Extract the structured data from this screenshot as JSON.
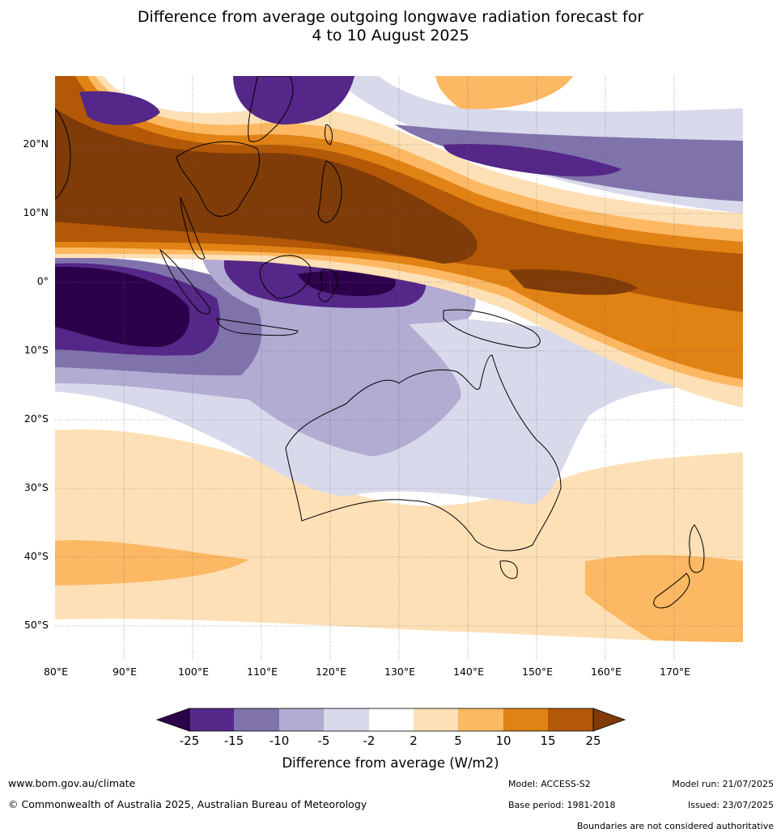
{
  "title": {
    "line1": "Difference from average outgoing longwave radiation forecast for",
    "line2": "4 to 10 August 2025"
  },
  "map": {
    "lat_labels": [
      "20°N",
      "10°N",
      "0°",
      "10°S",
      "20°S",
      "30°S",
      "40°S",
      "50°S"
    ],
    "lon_labels": [
      "80°E",
      "90°E",
      "100°E",
      "110°E",
      "120°E",
      "130°E",
      "140°E",
      "150°E",
      "160°E",
      "170°E"
    ],
    "lat_range": [
      -55,
      30
    ],
    "lon_range": [
      80,
      180
    ],
    "gridlines": true,
    "variable": "Difference from average outgoing longwave radiation"
  },
  "colorbar": {
    "ticks": [
      "-25",
      "-15",
      "-10",
      "-5",
      "-2",
      "2",
      "5",
      "10",
      "15",
      "25"
    ],
    "label": "Difference from average (W/m2)",
    "colors": {
      "below_-25": "#2d004b",
      "-25_-15": "#542788",
      "-15_-10": "#8073ac",
      "-10_-5": "#b2abd2",
      "-5_-2": "#d8daeb",
      "-2_2": "#ffffff",
      "2_5": "#fee0b6",
      "5_10": "#fdb863",
      "10_15": "#e08214",
      "15_25": "#b35806",
      "above_25": "#7f3b08"
    }
  },
  "footer": {
    "url": "www.bom.gov.au/climate",
    "copyright": "© Commonwealth of Australia 2025, Australian Bureau of Meteorology",
    "model": "Model: ACCESS-S2",
    "base_period": "Base period: 1981-2018",
    "model_run": "Model run: 21/07/2025",
    "issued": "Issued: 23/07/2025",
    "disclaimer": "Boundaries are not considered authoritative"
  }
}
